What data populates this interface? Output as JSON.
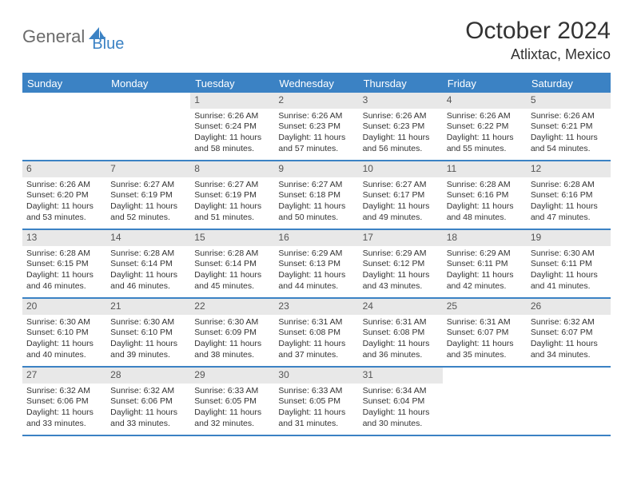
{
  "logo": {
    "part1": "General",
    "part2": "Blue"
  },
  "title": "October 2024",
  "location": "Atlixtac, Mexico",
  "colors": {
    "accent": "#3b82c4",
    "header_text": "#ffffff",
    "daynum_bg": "#e8e8e8",
    "text": "#333333",
    "logo_gray": "#6b6b6b"
  },
  "weekdays": [
    "Sunday",
    "Monday",
    "Tuesday",
    "Wednesday",
    "Thursday",
    "Friday",
    "Saturday"
  ],
  "weeks": [
    [
      {
        "n": "",
        "sr": "",
        "ss": "",
        "dl": ""
      },
      {
        "n": "",
        "sr": "",
        "ss": "",
        "dl": ""
      },
      {
        "n": "1",
        "sr": "Sunrise: 6:26 AM",
        "ss": "Sunset: 6:24 PM",
        "dl": "Daylight: 11 hours and 58 minutes."
      },
      {
        "n": "2",
        "sr": "Sunrise: 6:26 AM",
        "ss": "Sunset: 6:23 PM",
        "dl": "Daylight: 11 hours and 57 minutes."
      },
      {
        "n": "3",
        "sr": "Sunrise: 6:26 AM",
        "ss": "Sunset: 6:23 PM",
        "dl": "Daylight: 11 hours and 56 minutes."
      },
      {
        "n": "4",
        "sr": "Sunrise: 6:26 AM",
        "ss": "Sunset: 6:22 PM",
        "dl": "Daylight: 11 hours and 55 minutes."
      },
      {
        "n": "5",
        "sr": "Sunrise: 6:26 AM",
        "ss": "Sunset: 6:21 PM",
        "dl": "Daylight: 11 hours and 54 minutes."
      }
    ],
    [
      {
        "n": "6",
        "sr": "Sunrise: 6:26 AM",
        "ss": "Sunset: 6:20 PM",
        "dl": "Daylight: 11 hours and 53 minutes."
      },
      {
        "n": "7",
        "sr": "Sunrise: 6:27 AM",
        "ss": "Sunset: 6:19 PM",
        "dl": "Daylight: 11 hours and 52 minutes."
      },
      {
        "n": "8",
        "sr": "Sunrise: 6:27 AM",
        "ss": "Sunset: 6:19 PM",
        "dl": "Daylight: 11 hours and 51 minutes."
      },
      {
        "n": "9",
        "sr": "Sunrise: 6:27 AM",
        "ss": "Sunset: 6:18 PM",
        "dl": "Daylight: 11 hours and 50 minutes."
      },
      {
        "n": "10",
        "sr": "Sunrise: 6:27 AM",
        "ss": "Sunset: 6:17 PM",
        "dl": "Daylight: 11 hours and 49 minutes."
      },
      {
        "n": "11",
        "sr": "Sunrise: 6:28 AM",
        "ss": "Sunset: 6:16 PM",
        "dl": "Daylight: 11 hours and 48 minutes."
      },
      {
        "n": "12",
        "sr": "Sunrise: 6:28 AM",
        "ss": "Sunset: 6:16 PM",
        "dl": "Daylight: 11 hours and 47 minutes."
      }
    ],
    [
      {
        "n": "13",
        "sr": "Sunrise: 6:28 AM",
        "ss": "Sunset: 6:15 PM",
        "dl": "Daylight: 11 hours and 46 minutes."
      },
      {
        "n": "14",
        "sr": "Sunrise: 6:28 AM",
        "ss": "Sunset: 6:14 PM",
        "dl": "Daylight: 11 hours and 46 minutes."
      },
      {
        "n": "15",
        "sr": "Sunrise: 6:28 AM",
        "ss": "Sunset: 6:14 PM",
        "dl": "Daylight: 11 hours and 45 minutes."
      },
      {
        "n": "16",
        "sr": "Sunrise: 6:29 AM",
        "ss": "Sunset: 6:13 PM",
        "dl": "Daylight: 11 hours and 44 minutes."
      },
      {
        "n": "17",
        "sr": "Sunrise: 6:29 AM",
        "ss": "Sunset: 6:12 PM",
        "dl": "Daylight: 11 hours and 43 minutes."
      },
      {
        "n": "18",
        "sr": "Sunrise: 6:29 AM",
        "ss": "Sunset: 6:11 PM",
        "dl": "Daylight: 11 hours and 42 minutes."
      },
      {
        "n": "19",
        "sr": "Sunrise: 6:30 AM",
        "ss": "Sunset: 6:11 PM",
        "dl": "Daylight: 11 hours and 41 minutes."
      }
    ],
    [
      {
        "n": "20",
        "sr": "Sunrise: 6:30 AM",
        "ss": "Sunset: 6:10 PM",
        "dl": "Daylight: 11 hours and 40 minutes."
      },
      {
        "n": "21",
        "sr": "Sunrise: 6:30 AM",
        "ss": "Sunset: 6:10 PM",
        "dl": "Daylight: 11 hours and 39 minutes."
      },
      {
        "n": "22",
        "sr": "Sunrise: 6:30 AM",
        "ss": "Sunset: 6:09 PM",
        "dl": "Daylight: 11 hours and 38 minutes."
      },
      {
        "n": "23",
        "sr": "Sunrise: 6:31 AM",
        "ss": "Sunset: 6:08 PM",
        "dl": "Daylight: 11 hours and 37 minutes."
      },
      {
        "n": "24",
        "sr": "Sunrise: 6:31 AM",
        "ss": "Sunset: 6:08 PM",
        "dl": "Daylight: 11 hours and 36 minutes."
      },
      {
        "n": "25",
        "sr": "Sunrise: 6:31 AM",
        "ss": "Sunset: 6:07 PM",
        "dl": "Daylight: 11 hours and 35 minutes."
      },
      {
        "n": "26",
        "sr": "Sunrise: 6:32 AM",
        "ss": "Sunset: 6:07 PM",
        "dl": "Daylight: 11 hours and 34 minutes."
      }
    ],
    [
      {
        "n": "27",
        "sr": "Sunrise: 6:32 AM",
        "ss": "Sunset: 6:06 PM",
        "dl": "Daylight: 11 hours and 33 minutes."
      },
      {
        "n": "28",
        "sr": "Sunrise: 6:32 AM",
        "ss": "Sunset: 6:06 PM",
        "dl": "Daylight: 11 hours and 33 minutes."
      },
      {
        "n": "29",
        "sr": "Sunrise: 6:33 AM",
        "ss": "Sunset: 6:05 PM",
        "dl": "Daylight: 11 hours and 32 minutes."
      },
      {
        "n": "30",
        "sr": "Sunrise: 6:33 AM",
        "ss": "Sunset: 6:05 PM",
        "dl": "Daylight: 11 hours and 31 minutes."
      },
      {
        "n": "31",
        "sr": "Sunrise: 6:34 AM",
        "ss": "Sunset: 6:04 PM",
        "dl": "Daylight: 11 hours and 30 minutes."
      },
      {
        "n": "",
        "sr": "",
        "ss": "",
        "dl": ""
      },
      {
        "n": "",
        "sr": "",
        "ss": "",
        "dl": ""
      }
    ]
  ]
}
